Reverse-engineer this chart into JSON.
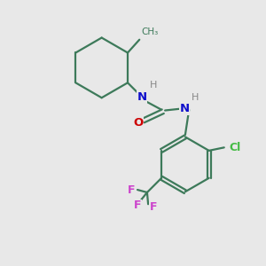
{
  "background_color": "#e8e8e8",
  "bond_color": "#3d7a5a",
  "n_color": "#1010cc",
  "h_color": "#888888",
  "o_color": "#cc0000",
  "cl_color": "#44bb44",
  "f_color": "#cc44cc",
  "figsize": [
    3.0,
    3.0
  ],
  "dpi": 100,
  "xlim": [
    0,
    10
  ],
  "ylim": [
    0,
    10
  ]
}
